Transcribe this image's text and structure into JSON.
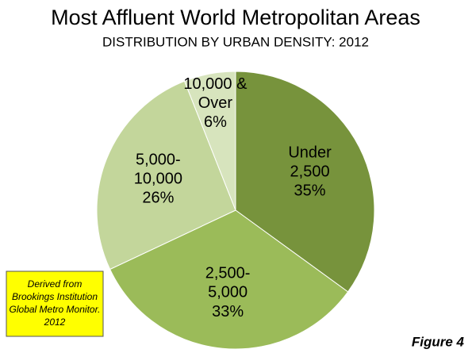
{
  "chart_data": {
    "type": "pie",
    "title": "Most Affluent World Metropolitan Areas",
    "subtitle": "DISTRIBUTION BY URBAN DENSITY: 2012",
    "categories": [
      "Under\n2,500",
      "2,500-\n5,000",
      "5,000-\n10,000",
      "10,000 &\nOver"
    ],
    "values": [
      35,
      33,
      26,
      6
    ],
    "value_labels": [
      "35%",
      "33%",
      "26%",
      "6%"
    ],
    "colors": [
      "#77933c",
      "#9bbb59",
      "#c3d69b",
      "#d7e4bd"
    ],
    "note": "Derived from\nBrookings Institution\nGlobal Metro Monitor.\n2012",
    "figure_label": "Figure 4"
  }
}
